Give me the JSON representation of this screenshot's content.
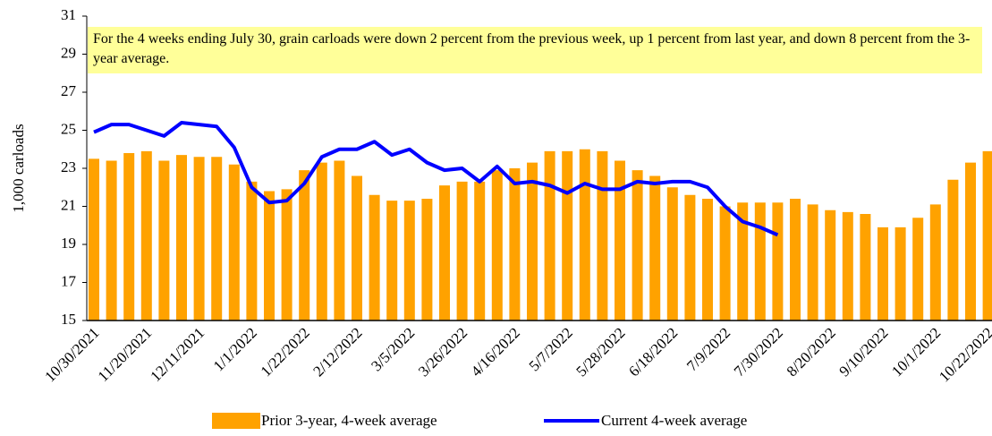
{
  "chart_data": {
    "type": "bar_line",
    "annotation": "For the 4 weeks ending July 30, grain carloads were down 2 percent from the previous week, up 1 percent from last year, and down 8 percent from the 3-year average.",
    "y_label": "1,000 carloads",
    "categories": [
      "10/30/2021",
      null,
      null,
      "11/20/2021",
      null,
      null,
      "12/11/2021",
      null,
      null,
      "1/1/2022",
      null,
      null,
      "1/22/2022",
      null,
      null,
      "2/12/2022",
      null,
      null,
      "3/5/2022",
      null,
      null,
      "3/26/2022",
      null,
      null,
      "4/16/2022",
      null,
      null,
      "5/7/2022",
      null,
      null,
      "5/28/2022",
      null,
      null,
      "6/18/2022",
      null,
      null,
      "7/9/2022",
      null,
      null,
      "7/30/2022",
      null,
      null,
      "8/20/2022",
      null,
      null,
      "9/10/2022",
      null,
      null,
      "10/1/2022",
      null,
      null,
      "10/22/2022"
    ],
    "series": [
      {
        "name": "Prior 3-year, 4-week average",
        "type": "bar",
        "color": "#ffa200",
        "values": [
          23.5,
          23.4,
          23.8,
          23.9,
          23.4,
          23.7,
          23.6,
          23.6,
          23.2,
          22.3,
          21.8,
          21.9,
          22.9,
          23.3,
          23.4,
          22.6,
          21.6,
          21.3,
          21.3,
          21.4,
          22.1,
          22.3,
          22.3,
          22.9,
          23.0,
          23.3,
          23.9,
          23.9,
          24.0,
          23.9,
          23.4,
          22.9,
          22.6,
          22.0,
          21.6,
          21.4,
          21.0,
          21.2,
          21.2,
          21.2,
          21.4,
          21.1,
          20.8,
          20.7,
          20.6,
          19.9,
          19.9,
          20.4,
          21.1,
          22.4,
          23.3,
          23.9
        ]
      },
      {
        "name": "Current 4-week average",
        "type": "line",
        "color": "#0000ff",
        "values": [
          24.9,
          25.3,
          25.3,
          25.0,
          24.7,
          25.4,
          25.3,
          25.2,
          24.1,
          22.0,
          21.2,
          21.3,
          22.2,
          23.6,
          24.0,
          24.0,
          24.4,
          23.7,
          24.0,
          23.3,
          22.9,
          23.0,
          22.3,
          23.1,
          22.2,
          22.3,
          22.1,
          21.7,
          22.2,
          21.9,
          21.9,
          22.3,
          22.2,
          22.3,
          22.3,
          22.0,
          21.0,
          20.2,
          19.9,
          19.5,
          null,
          null,
          null,
          null,
          null,
          null,
          null,
          null,
          null,
          null,
          null,
          null
        ]
      }
    ],
    "ylim": [
      15,
      31
    ],
    "yticks": [
      15,
      17,
      19,
      21,
      23,
      25,
      27,
      29,
      31
    ],
    "grid": false
  }
}
